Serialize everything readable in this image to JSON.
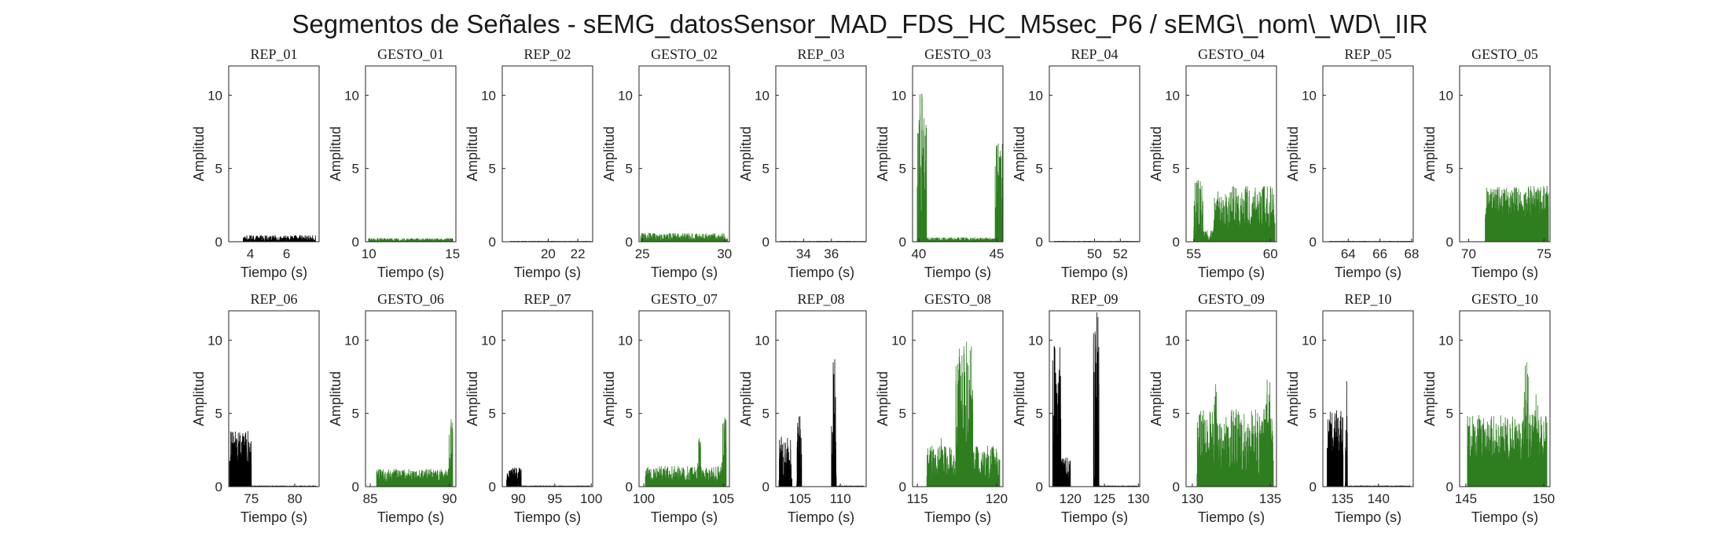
{
  "chart_data": {
    "type": "line",
    "title": "Segmentos de Señales - sEMG_datosSensor_MAD_FDS_HC_M5sec_P6 / sEMG\\_nom\\_WD\\_IIR",
    "ylabel": "Amplitud",
    "xlabel": "Tiempo (s)",
    "ylim": [
      0,
      12
    ],
    "yticks": [
      0,
      5,
      10
    ],
    "colors": {
      "rep": "#000000",
      "gesto": "#2e7d1f"
    },
    "panels": [
      {
        "title": "REP_01",
        "kind": "rep",
        "xlim": [
          2.8,
          7.8
        ],
        "xticks": [
          4,
          6
        ],
        "segments": [
          [
            3.6,
            7.6,
            0.05,
            0.45,
            4.6
          ]
        ]
      },
      {
        "title": "GESTO_01",
        "kind": "gesto",
        "xlim": [
          9.8,
          15.2
        ],
        "xticks": [
          10,
          15
        ],
        "segments": [
          [
            10.0,
            15.0,
            0.05,
            0.25,
            10.3
          ]
        ]
      },
      {
        "title": "REP_02",
        "kind": "rep",
        "xlim": [
          16.9,
          23.0
        ],
        "xticks": [
          20,
          22
        ],
        "segments": [
          [
            17.4,
            22.9,
            0.02,
            0.05,
            null
          ]
        ]
      },
      {
        "title": "GESTO_02",
        "kind": "gesto",
        "xlim": [
          24.8,
          30.3
        ],
        "xticks": [
          25,
          30
        ],
        "segments": [
          [
            24.9,
            30.2,
            0.05,
            0.6,
            25.4
          ]
        ]
      },
      {
        "title": "REP_03",
        "kind": "rep",
        "xlim": [
          32.0,
          38.5
        ],
        "xticks": [
          34,
          36
        ],
        "segments": [
          [
            32.3,
            38.4,
            0.02,
            0.05,
            null
          ]
        ]
      },
      {
        "title": "GESTO_03",
        "kind": "gesto",
        "xlim": [
          39.6,
          45.4
        ],
        "xticks": [
          40,
          45
        ],
        "segments": [
          [
            39.9,
            40.5,
            0.6,
            10.1,
            40.2
          ],
          [
            40.5,
            44.9,
            0.08,
            0.3,
            null
          ],
          [
            44.9,
            45.4,
            0.6,
            6.7,
            45.1
          ]
        ]
      },
      {
        "title": "REP_04",
        "kind": "rep",
        "xlim": [
          46.5,
          53.5
        ],
        "xticks": [
          50,
          52
        ],
        "segments": [
          [
            46.9,
            53.4,
            0.02,
            0.05,
            null
          ]
        ]
      },
      {
        "title": "GESTO_04",
        "kind": "gesto",
        "xlim": [
          54.5,
          60.4
        ],
        "xticks": [
          55,
          60
        ],
        "segments": [
          [
            55.0,
            55.6,
            0.3,
            4.2,
            55.3
          ],
          [
            55.6,
            56.3,
            0.1,
            0.8,
            null
          ],
          [
            56.3,
            60.3,
            0.9,
            3.8,
            60.0
          ]
        ]
      },
      {
        "title": "REP_05",
        "kind": "rep",
        "xlim": [
          62.4,
          68.1
        ],
        "xticks": [
          64,
          66,
          68
        ],
        "segments": [
          [
            62.8,
            68.0,
            0.02,
            0.05,
            null
          ]
        ]
      },
      {
        "title": "GESTO_05",
        "kind": "gesto",
        "xlim": [
          69.4,
          75.4
        ],
        "xticks": [
          70,
          75
        ],
        "segments": [
          [
            71.1,
            75.3,
            1.6,
            3.8,
            75.2
          ]
        ]
      },
      {
        "title": "REP_06",
        "kind": "rep",
        "xlim": [
          72.4,
          82.8
        ],
        "xticks": [
          75,
          80
        ],
        "segments": [
          [
            72.5,
            75.0,
            1.2,
            3.8,
            74.6
          ],
          [
            75.0,
            82.5,
            0.01,
            0.04,
            null
          ]
        ]
      },
      {
        "title": "GESTO_06",
        "kind": "gesto",
        "xlim": [
          84.7,
          90.4
        ],
        "xticks": [
          85,
          90
        ],
        "segments": [
          [
            85.4,
            90.2,
            0.3,
            1.2,
            85.5
          ],
          [
            89.9,
            90.2,
            0.5,
            4.6,
            90.1
          ]
        ]
      },
      {
        "title": "REP_07",
        "kind": "rep",
        "xlim": [
          87.8,
          100.2
        ],
        "xticks": [
          90,
          95,
          100
        ],
        "segments": [
          [
            88.4,
            90.4,
            0.4,
            1.3,
            90.1
          ],
          [
            90.4,
            99.8,
            0.01,
            0.04,
            null
          ]
        ]
      },
      {
        "title": "GESTO_07",
        "kind": "gesto",
        "xlim": [
          99.7,
          105.4
        ],
        "xticks": [
          100,
          105
        ],
        "segments": [
          [
            100.1,
            105.2,
            0.3,
            1.4,
            101.1
          ],
          [
            103.4,
            103.6,
            0.5,
            3.3,
            103.5
          ],
          [
            104.9,
            105.2,
            0.5,
            4.7,
            105.1
          ]
        ]
      },
      {
        "title": "REP_08",
        "kind": "rep",
        "xlim": [
          102.0,
          113.2
        ],
        "xticks": [
          105,
          110
        ],
        "segments": [
          [
            102.4,
            104.0,
            0.4,
            3.4,
            102.7
          ],
          [
            104.6,
            105.2,
            0.1,
            4.8,
            105.0
          ],
          [
            108.9,
            109.5,
            0.1,
            8.7,
            109.3
          ],
          [
            109.5,
            112.9,
            0.01,
            0.04,
            null
          ]
        ]
      },
      {
        "title": "GESTO_08",
        "kind": "gesto",
        "xlim": [
          114.7,
          120.4
        ],
        "xticks": [
          115,
          120
        ],
        "segments": [
          [
            115.6,
            120.2,
            0.4,
            2.8,
            118.1
          ],
          [
            117.4,
            118.5,
            0.8,
            9.9,
            118.1
          ],
          [
            116.4,
            116.7,
            0.5,
            3.3,
            116.5
          ]
        ]
      },
      {
        "title": "REP_09",
        "kind": "rep",
        "xlim": [
          116.9,
          130.2
        ],
        "xticks": [
          120,
          125,
          130
        ],
        "segments": [
          [
            117.4,
            120.0,
            0.4,
            2.0,
            117.7
          ],
          [
            117.4,
            118.6,
            0.5,
            9.6,
            117.6
          ],
          [
            123.4,
            124.2,
            0.2,
            11.9,
            123.9
          ],
          [
            124.2,
            129.9,
            0.01,
            0.04,
            null
          ]
        ]
      },
      {
        "title": "GESTO_09",
        "kind": "gesto",
        "xlim": [
          129.6,
          135.4
        ],
        "xticks": [
          130,
          135
        ],
        "segments": [
          [
            130.3,
            135.2,
            0.8,
            5.3,
            134.6
          ],
          [
            131.4,
            131.6,
            0.5,
            7.0,
            131.5
          ],
          [
            134.7,
            135.0,
            0.5,
            7.3,
            134.8
          ]
        ]
      },
      {
        "title": "REP_10",
        "kind": "rep",
        "xlim": [
          132.3,
          144.8
        ],
        "xticks": [
          135,
          140
        ],
        "segments": [
          [
            132.9,
            135.1,
            1.8,
            5.2,
            134.2
          ],
          [
            135.4,
            135.7,
            0.1,
            7.2,
            135.6
          ],
          [
            135.7,
            144.4,
            0.01,
            0.04,
            null
          ]
        ]
      },
      {
        "title": "GESTO_10",
        "kind": "gesto",
        "xlim": [
          144.6,
          150.4
        ],
        "xticks": [
          145,
          150
        ],
        "segments": [
          [
            145.1,
            150.2,
            1.8,
            4.9,
            149.3
          ],
          [
            148.7,
            149.0,
            0.5,
            8.5,
            148.9
          ],
          [
            149.4,
            149.7,
            0.5,
            6.3,
            149.5
          ]
        ]
      }
    ]
  }
}
